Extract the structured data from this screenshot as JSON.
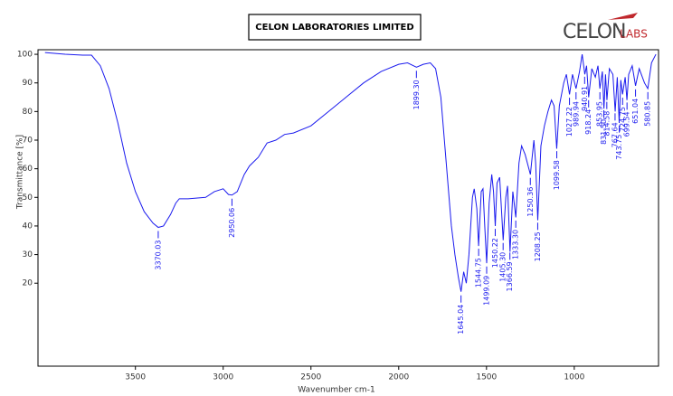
{
  "chart_data": {
    "type": "line",
    "title": "CELON LABORATORIES LIMITED",
    "logo": {
      "main": "CELON",
      "sub": "LABS"
    },
    "x_label": "Wavenumber cm-1",
    "y_label": "Transmittance [%]",
    "xlim": [
      4055,
      520
    ],
    "ylim": [
      -9,
      101.6
    ],
    "xticks": [
      3500,
      3000,
      2500,
      2000,
      1500,
      1000
    ],
    "yticks": [
      20,
      30,
      40,
      50,
      60,
      70,
      80,
      90,
      100
    ],
    "series": [
      {
        "name": "Spectrum",
        "color": "#1a1aee",
        "x": [
          4015,
          3900,
          3800,
          3750,
          3700,
          3650,
          3600,
          3550,
          3500,
          3450,
          3400,
          3370,
          3340,
          3300,
          3270,
          3250,
          3200,
          3100,
          3050,
          3000,
          2970,
          2950,
          2920,
          2880,
          2850,
          2800,
          2750,
          2700,
          2650,
          2600,
          2500,
          2400,
          2300,
          2200,
          2100,
          2000,
          1950,
          1899,
          1860,
          1820,
          1790,
          1760,
          1740,
          1720,
          1700,
          1680,
          1660,
          1645,
          1630,
          1615,
          1600,
          1580,
          1570,
          1555,
          1545,
          1530,
          1520,
          1510,
          1499,
          1485,
          1470,
          1460,
          1450,
          1440,
          1425,
          1405,
          1390,
          1380,
          1366,
          1350,
          1333,
          1315,
          1300,
          1280,
          1250,
          1230,
          1220,
          1208,
          1190,
          1170,
          1150,
          1130,
          1115,
          1100,
          1085,
          1060,
          1045,
          1027,
          1010,
          990,
          970,
          955,
          940,
          930,
          918,
          900,
          880,
          865,
          854,
          840,
          831,
          822,
          814,
          800,
          780,
          767,
          755,
          744,
          735,
          725,
          710,
          700,
          690,
          670,
          651,
          630,
          600,
          581,
          560,
          535
        ],
        "values": [
          100.6,
          100,
          99.7,
          99.7,
          96,
          88,
          76,
          62,
          52,
          45,
          41,
          39.5,
          40,
          44,
          48,
          49.5,
          49.5,
          50,
          52,
          53,
          51,
          50.8,
          52,
          58,
          61,
          64,
          69,
          70,
          72,
          72.5,
          75,
          80,
          85,
          90,
          94,
          96.5,
          97,
          95.5,
          96.5,
          97,
          95,
          85,
          70,
          55,
          40,
          30,
          22,
          17,
          24,
          20,
          30,
          50,
          53,
          46,
          33,
          52,
          53,
          40,
          27,
          48,
          58,
          52,
          40,
          55,
          57,
          35,
          50,
          54,
          31,
          52,
          43,
          62,
          68,
          65,
          58,
          70,
          62,
          42,
          68,
          75,
          80,
          84,
          82,
          67,
          82,
          90,
          93,
          86,
          93,
          88,
          94,
          100,
          93,
          96,
          85,
          95,
          92,
          96,
          88,
          94,
          81,
          93,
          84,
          95,
          93,
          80,
          92,
          76,
          91,
          86,
          92,
          84,
          93,
          96,
          89,
          95,
          90,
          88,
          97,
          100
        ]
      }
    ],
    "peaks": [
      {
        "x": 3370.03,
        "label": "3370.03"
      },
      {
        "x": 2950.06,
        "label": "2950.06"
      },
      {
        "x": 1899.3,
        "label": "1899.30"
      },
      {
        "x": 1645.04,
        "label": "1645.04"
      },
      {
        "x": 1544.75,
        "label": "1544.75"
      },
      {
        "x": 1499.09,
        "label": "1499.09"
      },
      {
        "x": 1450.22,
        "label": "1450.22"
      },
      {
        "x": 1405.3,
        "label": "1405.30"
      },
      {
        "x": 1366.59,
        "label": "1366.59"
      },
      {
        "x": 1333.3,
        "label": "1333.30"
      },
      {
        "x": 1250.36,
        "label": "1250.36"
      },
      {
        "x": 1208.25,
        "label": "1208.25"
      },
      {
        "x": 1099.58,
        "label": "1099.58"
      },
      {
        "x": 1027.22,
        "label": "1027.22"
      },
      {
        "x": 989.94,
        "label": "989.94"
      },
      {
        "x": 940.91,
        "label": "940.91"
      },
      {
        "x": 918.24,
        "label": "918.24"
      },
      {
        "x": 853.95,
        "label": "853.95"
      },
      {
        "x": 831.5,
        "label": "831.50"
      },
      {
        "x": 814.58,
        "label": "814.58"
      },
      {
        "x": 767.64,
        "label": "767.64"
      },
      {
        "x": 743.75,
        "label": "743.75"
      },
      {
        "x": 724.75,
        "label": "724.75"
      },
      {
        "x": 699.54,
        "label": "699.54"
      },
      {
        "x": 651.04,
        "label": "651.04"
      },
      {
        "x": 580.85,
        "label": "580.85"
      }
    ]
  }
}
